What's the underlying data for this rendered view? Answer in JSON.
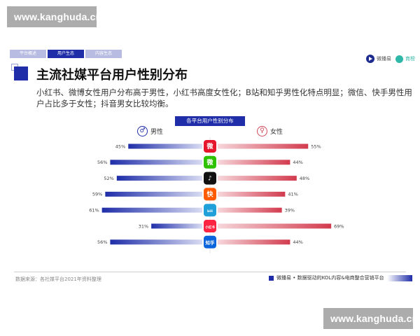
{
  "watermark": {
    "top": "www.kanghuda.cn",
    "bottom": "www.kanghuda.cn"
  },
  "tabs": [
    {
      "label": "平台概述",
      "active": false
    },
    {
      "label": "用户生态",
      "active": true
    },
    {
      "label": "内容生态",
      "active": false
    }
  ],
  "brand": {
    "name_a": "微播易",
    "name_b": "育榜"
  },
  "header": {
    "title": "主流社媒平台用户性别分布"
  },
  "subtitle": "小红书、微博女性用户分布高于男性，小红书高度女性化；B站和知乎男性化特点明显；微信、快手男性用户占比多于女性；抖音男女比较均衡。",
  "legend": {
    "male": "男性",
    "female": "女性",
    "male_icon": "♂",
    "female_icon": "♀"
  },
  "footer": {
    "source": "数据来源：各社媒平台2021年资料整理",
    "tagline": "微播易 • 数据驱动的KOL内容&电商整合营销平台"
  },
  "colors": {
    "male": "#1f2ea8",
    "female": "#d23b4e",
    "accent": "#1f2ea8"
  },
  "chart_data": {
    "type": "bar",
    "title": "各平台用户性别分布",
    "categories": [
      "微博",
      "微信",
      "抖音",
      "快手",
      "B站",
      "小红书",
      "知乎"
    ],
    "icons": [
      "weibo-icon",
      "wechat-icon",
      "douyin-icon",
      "kuaishou-icon",
      "bilibili-icon",
      "xiaohongshu-icon",
      "zhihu-icon"
    ],
    "icon_text": [
      "微",
      "微",
      "♪",
      "快",
      "bili",
      "小红书",
      "知乎"
    ],
    "icon_colors": [
      "#e6162d",
      "#2dc100",
      "#111111",
      "#ff5a00",
      "#20a0d8",
      "#ff2442",
      "#0a64dc"
    ],
    "series": [
      {
        "name": "男性",
        "values": [
          45,
          56,
          52,
          59,
          61,
          31,
          56
        ]
      },
      {
        "name": "女性",
        "values": [
          55,
          44,
          48,
          41,
          39,
          69,
          44
        ]
      }
    ],
    "value_labels_male": [
      "45%",
      "56%",
      "52%",
      "59%",
      "61%",
      "31%",
      "56%"
    ],
    "value_labels_female": [
      "55%",
      "44%",
      "48%",
      "41%",
      "39%",
      "69%",
      "44%"
    ]
  }
}
